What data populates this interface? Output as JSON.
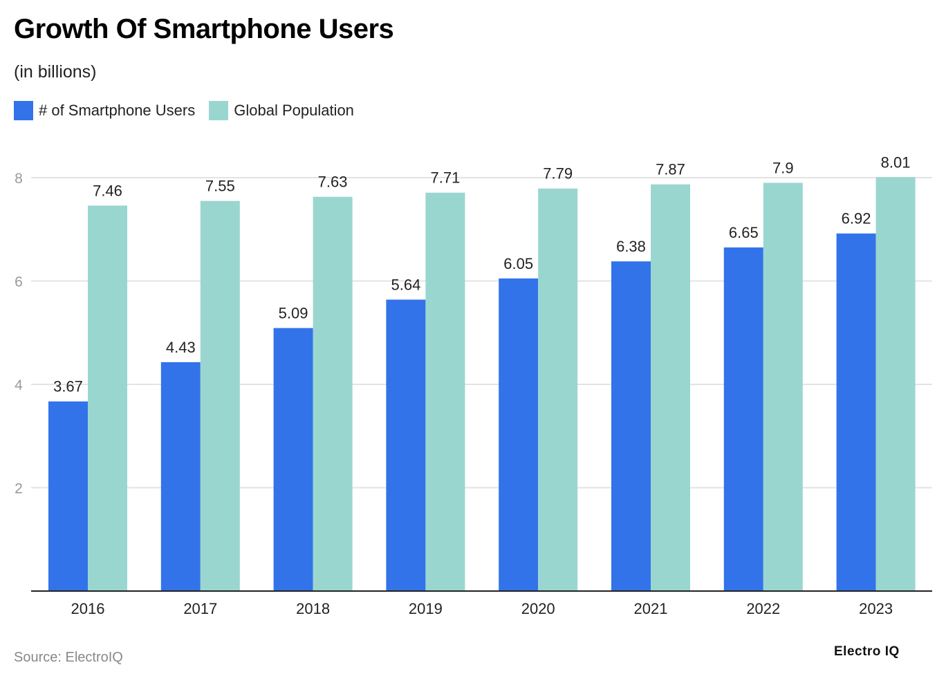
{
  "chart_data": {
    "type": "bar",
    "title": "Growth Of Smartphone Users",
    "subtitle": "(in billions)",
    "categories": [
      "2016",
      "2017",
      "2018",
      "2019",
      "2020",
      "2021",
      "2022",
      "2023"
    ],
    "series": [
      {
        "name": "# of Smartphone Users",
        "color": "#3273ea",
        "values": [
          3.67,
          4.43,
          5.09,
          5.64,
          6.05,
          6.38,
          6.65,
          6.92
        ]
      },
      {
        "name": "Global Population",
        "color": "#9ad6d0",
        "values": [
          7.46,
          7.55,
          7.63,
          7.71,
          7.79,
          7.87,
          7.9,
          8.01
        ]
      }
    ],
    "yticks": [
      2,
      4,
      6,
      8
    ],
    "ylim": [
      0,
      8
    ],
    "grid": true,
    "legend": "top-left",
    "xlabel": "",
    "ylabel": ""
  },
  "source": "Source: ElectroIQ",
  "logo": "Electro IQ"
}
